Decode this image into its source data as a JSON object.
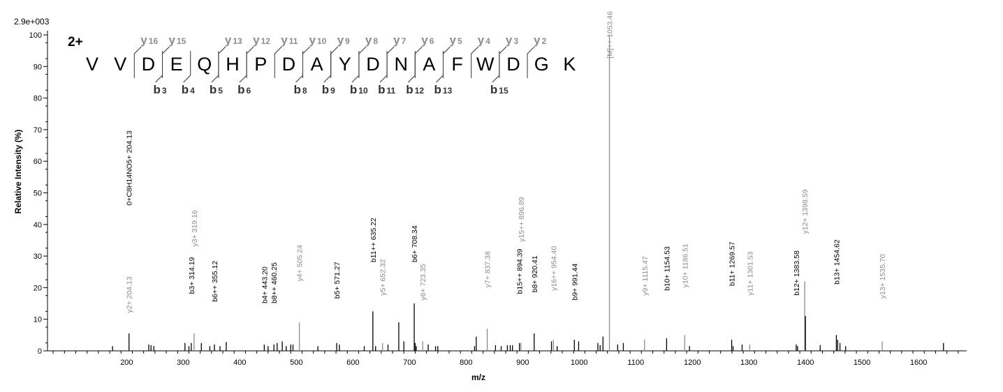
{
  "chart_data": {
    "type": "bar",
    "title": "",
    "xlabel": "m/z",
    "ylabel": "Relative   Intensity (%)",
    "y_max_label": "2.9e+003",
    "charge_state": "2+",
    "xlim": [
      60,
      1685
    ],
    "ylim": [
      0,
      100
    ],
    "x_ticks": [
      200,
      300,
      400,
      500,
      600,
      700,
      800,
      900,
      1000,
      1100,
      1200,
      1300,
      1400,
      1500,
      1600
    ],
    "y_ticks": [
      0,
      10,
      20,
      30,
      40,
      50,
      60,
      70,
      80,
      90,
      100
    ],
    "grid": false,
    "sequence": [
      "V",
      "V",
      "D",
      "E",
      "Q",
      "H",
      "P",
      "D",
      "A",
      "Y",
      "D",
      "N",
      "A",
      "F",
      "W",
      "D",
      "G",
      "K"
    ],
    "y_ions": [
      {
        "after": 2,
        "n": "16"
      },
      {
        "after": 3,
        "n": "15"
      },
      {
        "after": 5,
        "n": "13"
      },
      {
        "after": 6,
        "n": "12"
      },
      {
        "after": 7,
        "n": "11"
      },
      {
        "after": 8,
        "n": "10"
      },
      {
        "after": 9,
        "n": "9"
      },
      {
        "after": 10,
        "n": "8"
      },
      {
        "after": 11,
        "n": "7"
      },
      {
        "after": 12,
        "n": "6"
      },
      {
        "after": 13,
        "n": "5"
      },
      {
        "after": 14,
        "n": "4"
      },
      {
        "after": 15,
        "n": "3"
      },
      {
        "after": 16,
        "n": "2"
      }
    ],
    "b_ions": [
      {
        "after": 3,
        "n": "3"
      },
      {
        "after": 4,
        "n": "4"
      },
      {
        "after": 5,
        "n": "5"
      },
      {
        "after": 6,
        "n": "6"
      },
      {
        "after": 8,
        "n": "8"
      },
      {
        "after": 9,
        "n": "9"
      },
      {
        "after": 10,
        "n": "10"
      },
      {
        "after": 11,
        "n": "11"
      },
      {
        "after": 12,
        "n": "12"
      },
      {
        "after": 13,
        "n": "13"
      },
      {
        "after": 15,
        "n": "15"
      }
    ],
    "peaks": [
      {
        "x": 175,
        "y": 1.5,
        "c": "k"
      },
      {
        "x": 204.13,
        "y": 5.5,
        "c": "k"
      },
      {
        "x": 239,
        "y": 2,
        "c": "k"
      },
      {
        "x": 243,
        "y": 1.8,
        "c": "k"
      },
      {
        "x": 248,
        "y": 1.5,
        "c": "k"
      },
      {
        "x": 303,
        "y": 2.5,
        "c": "k"
      },
      {
        "x": 310,
        "y": 1.5,
        "c": "k"
      },
      {
        "x": 314.19,
        "y": 2.5,
        "c": "k"
      },
      {
        "x": 319.16,
        "y": 5.5,
        "c": "g"
      },
      {
        "x": 332,
        "y": 2.5,
        "c": "k"
      },
      {
        "x": 347,
        "y": 1.5,
        "c": "k"
      },
      {
        "x": 355.12,
        "y": 2,
        "c": "k"
      },
      {
        "x": 365,
        "y": 1.5,
        "c": "k"
      },
      {
        "x": 376,
        "y": 2.8,
        "c": "k"
      },
      {
        "x": 443.2,
        "y": 2,
        "c": "k"
      },
      {
        "x": 450,
        "y": 1.5,
        "c": "k"
      },
      {
        "x": 460.25,
        "y": 2,
        "c": "k"
      },
      {
        "x": 466,
        "y": 2.5,
        "c": "k"
      },
      {
        "x": 475,
        "y": 3,
        "c": "k"
      },
      {
        "x": 482,
        "y": 1.5,
        "c": "k"
      },
      {
        "x": 490,
        "y": 2,
        "c": "k"
      },
      {
        "x": 494,
        "y": 2,
        "c": "k"
      },
      {
        "x": 505.24,
        "y": 9,
        "c": "g"
      },
      {
        "x": 538,
        "y": 1.5,
        "c": "k"
      },
      {
        "x": 571.27,
        "y": 2.5,
        "c": "k"
      },
      {
        "x": 576,
        "y": 2,
        "c": "k"
      },
      {
        "x": 620,
        "y": 1.5,
        "c": "k"
      },
      {
        "x": 635.22,
        "y": 12.5,
        "c": "k"
      },
      {
        "x": 640,
        "y": 1.5,
        "c": "k"
      },
      {
        "x": 652.32,
        "y": 2.5,
        "c": "g"
      },
      {
        "x": 662,
        "y": 2,
        "c": "k"
      },
      {
        "x": 681,
        "y": 9,
        "c": "k"
      },
      {
        "x": 690,
        "y": 3,
        "c": "k"
      },
      {
        "x": 708.34,
        "y": 15,
        "c": "k"
      },
      {
        "x": 710,
        "y": 2.5,
        "c": "k"
      },
      {
        "x": 712,
        "y": 1.5,
        "c": "k"
      },
      {
        "x": 723.35,
        "y": 3,
        "c": "g"
      },
      {
        "x": 733,
        "y": 2,
        "c": "k"
      },
      {
        "x": 746,
        "y": 1.5,
        "c": "k"
      },
      {
        "x": 750,
        "y": 1.5,
        "c": "k"
      },
      {
        "x": 815,
        "y": 1.5,
        "c": "k"
      },
      {
        "x": 818,
        "y": 4.5,
        "c": "k"
      },
      {
        "x": 837.38,
        "y": 7,
        "c": "g"
      },
      {
        "x": 852,
        "y": 1.8,
        "c": "k"
      },
      {
        "x": 862,
        "y": 1.5,
        "c": "k"
      },
      {
        "x": 873,
        "y": 1.8,
        "c": "k"
      },
      {
        "x": 878,
        "y": 1.8,
        "c": "k"
      },
      {
        "x": 882,
        "y": 1.8,
        "c": "k"
      },
      {
        "x": 894.39,
        "y": 2.5,
        "c": "k"
      },
      {
        "x": 896.89,
        "y": 2.5,
        "c": "g"
      },
      {
        "x": 920.41,
        "y": 5.5,
        "c": "k"
      },
      {
        "x": 951,
        "y": 3,
        "c": "k"
      },
      {
        "x": 954.4,
        "y": 3.5,
        "c": "g"
      },
      {
        "x": 961,
        "y": 1.5,
        "c": "k"
      },
      {
        "x": 991.44,
        "y": 3.5,
        "c": "k"
      },
      {
        "x": 999,
        "y": 3,
        "c": "k"
      },
      {
        "x": 1033,
        "y": 2.5,
        "c": "k"
      },
      {
        "x": 1037,
        "y": 1.8,
        "c": "k"
      },
      {
        "x": 1042,
        "y": 4.5,
        "c": "k"
      },
      {
        "x": 1053.46,
        "y": 100,
        "c": "g"
      },
      {
        "x": 1068,
        "y": 2,
        "c": "k"
      },
      {
        "x": 1078,
        "y": 2.5,
        "c": "k"
      },
      {
        "x": 1115.47,
        "y": 3.5,
        "c": "g"
      },
      {
        "x": 1154.53,
        "y": 4,
        "c": "k"
      },
      {
        "x": 1186.51,
        "y": 5,
        "c": "g"
      },
      {
        "x": 1195,
        "y": 1.5,
        "c": "k"
      },
      {
        "x": 1269.57,
        "y": 3.5,
        "c": "k"
      },
      {
        "x": 1272,
        "y": 1.5,
        "c": "k"
      },
      {
        "x": 1288,
        "y": 2,
        "c": "k"
      },
      {
        "x": 1301.53,
        "y": 2,
        "c": "g"
      },
      {
        "x": 1383.58,
        "y": 2,
        "c": "k"
      },
      {
        "x": 1386,
        "y": 1.5,
        "c": "k"
      },
      {
        "x": 1398.59,
        "y": 22,
        "c": "g"
      },
      {
        "x": 1400,
        "y": 11,
        "c": "k"
      },
      {
        "x": 1426,
        "y": 1.8,
        "c": "k"
      },
      {
        "x": 1454.62,
        "y": 5,
        "c": "k"
      },
      {
        "x": 1457,
        "y": 3.5,
        "c": "k"
      },
      {
        "x": 1461,
        "y": 2.5,
        "c": "k"
      },
      {
        "x": 1471,
        "y": 1.5,
        "c": "k"
      },
      {
        "x": 1535.7,
        "y": 3,
        "c": "g"
      },
      {
        "x": 1644,
        "y": 2.5,
        "c": "k"
      }
    ],
    "annotations": [
      {
        "x": 204.13,
        "label": "y2+ 204.13",
        "c": "g",
        "top": 12
      },
      {
        "x": 204.13,
        "label": "0+C8H14NO5+ 204.13",
        "c": "k",
        "top": 46
      },
      {
        "x": 314.19,
        "label": "b3+ 314.19",
        "c": "k",
        "top": 18
      },
      {
        "x": 319.16,
        "label": "y3+ 319.16",
        "c": "g",
        "top": 33
      },
      {
        "x": 355.12,
        "label": "b6++ 355.12",
        "c": "k",
        "top": 15.5
      },
      {
        "x": 443.2,
        "label": "b4+ 443.20",
        "c": "k",
        "top": 15
      },
      {
        "x": 460.25,
        "label": "b8++ 460.25",
        "c": "k",
        "top": 15
      },
      {
        "x": 505.24,
        "label": "y4+ 505.24",
        "c": "g",
        "top": 22
      },
      {
        "x": 571.27,
        "label": "b5+ 571.27",
        "c": "k",
        "top": 16.5
      },
      {
        "x": 635.22,
        "label": "b11++ 635.22",
        "c": "k",
        "top": 28
      },
      {
        "x": 652.32,
        "label": "y5+ 652.32",
        "c": "g",
        "top": 17.5
      },
      {
        "x": 708.34,
        "label": "b6+ 708.34",
        "c": "k",
        "top": 28
      },
      {
        "x": 723.35,
        "label": "y6+ 723.35",
        "c": "g",
        "top": 16
      },
      {
        "x": 837.38,
        "label": "y7+ 837.38",
        "c": "g",
        "top": 20
      },
      {
        "x": 894.39,
        "label": "b15++ 894.39",
        "c": "k",
        "top": 18
      },
      {
        "x": 896.89,
        "label": "y15++ 896.89",
        "c": "g",
        "top": 34.5
      },
      {
        "x": 920.41,
        "label": "b8+ 920.41",
        "c": "k",
        "top": 18.5
      },
      {
        "x": 954.4,
        "label": "y16++ 954.40",
        "c": "g",
        "top": 19
      },
      {
        "x": 991.44,
        "label": "b9+ 991.44",
        "c": "k",
        "top": 16
      },
      {
        "x": 1053.46,
        "label": "[M]++ 1053.46",
        "c": "g",
        "top": 107.5,
        "hang": true
      },
      {
        "x": 1115.47,
        "label": "y9+ 1115.47",
        "c": "g",
        "top": 17.5
      },
      {
        "x": 1154.53,
        "label": "b10+ 1154.53",
        "c": "k",
        "top": 19
      },
      {
        "x": 1186.51,
        "label": "y10+ 1186.51",
        "c": "g",
        "top": 20
      },
      {
        "x": 1269.57,
        "label": "b11+ 1269.57",
        "c": "k",
        "top": 20.5
      },
      {
        "x": 1301.53,
        "label": "y11+ 1301.53",
        "c": "g",
        "top": 17.5
      },
      {
        "x": 1383.58,
        "label": "b12+ 1383.58",
        "c": "k",
        "top": 17.5
      },
      {
        "x": 1398.59,
        "label": "y12+ 1398.59",
        "c": "g",
        "top": 37
      },
      {
        "x": 1454.62,
        "label": "b13+ 1454.62",
        "c": "k",
        "top": 21
      },
      {
        "x": 1535.7,
        "label": "y13+ 1535.70",
        "c": "g",
        "top": 16.5
      }
    ],
    "colors": {
      "y_series": "#8c8c8c",
      "b_series": "#000000",
      "axis": "#000000"
    }
  }
}
